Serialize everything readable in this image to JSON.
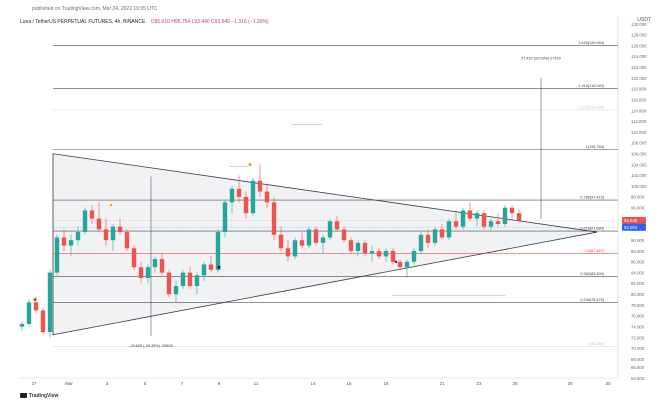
{
  "header": {
    "published": "published on TradingView.com, Mar 24, 2022 19:35 UTC",
    "symbol": "Luna / TetherUS PERPETUAL FUTURES, 4h, BINANCE",
    "ohlc": "O95.010  H95.754  L93.440  C93.640  −1.316 (−1.39%)",
    "currency": "USDT"
  },
  "logo": {
    "text": "TradingView"
  },
  "colors": {
    "up": "#26a69a",
    "down": "#ef5350",
    "fib_line": "#787b86",
    "triangle": "#363a45",
    "ema": "#f23645"
  },
  "chart_data": {
    "type": "candlestick",
    "title": "",
    "y_axis": {
      "min": 64.5,
      "max": 130.0,
      "side": "right",
      "ticks": [
        "130.000",
        "128.000",
        "126.000",
        "124.000",
        "122.000",
        "120.000",
        "118.000",
        "116.000",
        "114.000",
        "112.000",
        "110.000",
        "108.000",
        "106.000",
        "104.000",
        "102.000",
        "100.000",
        "98.000",
        "96.000",
        "94.000",
        "92.000",
        "90.000",
        "88.000",
        "86.000",
        "84.000",
        "82.000",
        "80.000",
        "78.000",
        "76.000",
        "74.000",
        "72.000",
        "70.000",
        "68.000",
        "66.500",
        "64.500"
      ]
    },
    "x_axis": {
      "ticks": [
        "27",
        "Mar",
        "3",
        "5",
        "7",
        "9",
        "11",
        "14",
        "16",
        "18",
        "21",
        "23",
        "25",
        "28",
        "30"
      ]
    },
    "fib_levels": [
      {
        "label": "1.618(126.064)",
        "value": 126.06
      },
      {
        "label": "1.414(118.040)",
        "value": 118.04
      },
      {
        "label": "1.272(114.100)",
        "value": 114.1
      },
      {
        "label": "1(106.784)",
        "value": 106.78
      },
      {
        "label": "0.786(97.415)",
        "value": 97.42
      },
      {
        "label": "0.618(91.680)",
        "value": 91.68
      },
      {
        "label": "0.5(87.567)",
        "value": 87.57
      },
      {
        "label": "0.382(83.304)",
        "value": 83.3
      },
      {
        "label": "0.236(78.475)",
        "value": 78.48
      },
      {
        "label": "0(70.350)",
        "value": 70.35
      }
    ],
    "annotations": [
      {
        "text": "27.420 (29.09%) 27420"
      },
      {
        "text": "-29.605 (-29.35%) -29605"
      }
    ],
    "current_prices": [
      {
        "label": "93.640",
        "value": 93.64,
        "color": "#ef5350"
      },
      {
        "label": "93.053",
        "value": 92.4,
        "color": "#2962ff"
      }
    ],
    "ohlc": [
      [
        74.0,
        75.0,
        73.2,
        74.5
      ],
      [
        74.5,
        79.0,
        74.0,
        78.5
      ],
      [
        78.5,
        79.5,
        76.5,
        77.0
      ],
      [
        77.0,
        77.5,
        72.5,
        73.0
      ],
      [
        73.0,
        84.5,
        72.0,
        84.0
      ],
      [
        84.0,
        91.0,
        83.5,
        90.5
      ],
      [
        90.5,
        92.0,
        88.0,
        89.0
      ],
      [
        89.0,
        91.0,
        87.0,
        90.0
      ],
      [
        90.0,
        92.5,
        89.0,
        91.5
      ],
      [
        91.5,
        96.0,
        91.0,
        95.5
      ],
      [
        95.5,
        96.5,
        93.0,
        94.0
      ],
      [
        94.0,
        97.0,
        91.5,
        92.0
      ],
      [
        92.0,
        94.0,
        89.0,
        90.0
      ],
      [
        90.0,
        93.0,
        88.0,
        92.5
      ],
      [
        92.5,
        94.0,
        91.0,
        91.5
      ],
      [
        91.5,
        92.0,
        88.0,
        88.5
      ],
      [
        88.5,
        89.0,
        84.5,
        85.0
      ],
      [
        85.0,
        86.0,
        82.0,
        83.0
      ],
      [
        83.0,
        85.5,
        82.0,
        85.0
      ],
      [
        85.0,
        87.0,
        84.0,
        86.5
      ],
      [
        86.5,
        87.5,
        83.5,
        84.0
      ],
      [
        84.0,
        84.5,
        79.5,
        80.0
      ],
      [
        80.0,
        82.5,
        78.5,
        81.5
      ],
      [
        81.5,
        84.5,
        81.0,
        84.0
      ],
      [
        84.0,
        85.0,
        81.0,
        81.5
      ],
      [
        81.5,
        84.0,
        80.0,
        83.5
      ],
      [
        83.5,
        86.0,
        82.5,
        85.5
      ],
      [
        85.5,
        87.0,
        84.0,
        84.5
      ],
      [
        84.5,
        92.0,
        84.0,
        91.5
      ],
      [
        91.5,
        97.5,
        90.5,
        97.0
      ],
      [
        97.0,
        100.0,
        95.0,
        99.5
      ],
      [
        99.5,
        102.0,
        97.0,
        98.0
      ],
      [
        98.0,
        99.0,
        94.0,
        95.0
      ],
      [
        95.0,
        101.5,
        94.5,
        101.0
      ],
      [
        101.0,
        104.0,
        98.0,
        99.0
      ],
      [
        99.0,
        100.5,
        96.0,
        97.0
      ],
      [
        97.0,
        98.0,
        90.0,
        91.0
      ],
      [
        91.0,
        92.5,
        88.0,
        88.5
      ],
      [
        88.5,
        90.0,
        86.0,
        87.0
      ],
      [
        87.0,
        90.5,
        86.5,
        90.0
      ],
      [
        90.0,
        91.5,
        88.5,
        89.0
      ],
      [
        89.0,
        92.5,
        88.5,
        92.0
      ],
      [
        92.0,
        92.5,
        89.0,
        89.5
      ],
      [
        89.5,
        91.0,
        87.5,
        90.5
      ],
      [
        90.5,
        94.0,
        90.0,
        93.5
      ],
      [
        93.5,
        94.5,
        91.5,
        92.0
      ],
      [
        92.0,
        92.5,
        89.5,
        90.0
      ],
      [
        90.0,
        90.5,
        87.5,
        88.0
      ],
      [
        88.0,
        90.0,
        87.0,
        89.5
      ],
      [
        89.5,
        90.0,
        87.0,
        87.5
      ],
      [
        87.5,
        89.0,
        86.0,
        88.0
      ],
      [
        88.0,
        88.5,
        86.5,
        87.0
      ],
      [
        87.0,
        88.5,
        86.0,
        88.0
      ],
      [
        88.0,
        88.5,
        85.5,
        86.0
      ],
      [
        86.0,
        86.5,
        84.5,
        85.0
      ],
      [
        85.0,
        86.5,
        83.0,
        86.0
      ],
      [
        86.0,
        88.5,
        85.5,
        88.0
      ],
      [
        88.0,
        91.5,
        87.5,
        91.0
      ],
      [
        91.0,
        92.0,
        88.5,
        89.5
      ],
      [
        89.5,
        92.5,
        89.0,
        92.0
      ],
      [
        92.0,
        93.0,
        90.0,
        90.5
      ],
      [
        90.5,
        94.0,
        90.0,
        93.5
      ],
      [
        93.5,
        95.5,
        92.0,
        92.5
      ],
      [
        92.5,
        96.0,
        92.0,
        95.5
      ],
      [
        95.5,
        97.0,
        93.5,
        94.0
      ],
      [
        94.0,
        95.5,
        92.5,
        95.0
      ],
      [
        95.0,
        95.5,
        92.0,
        92.5
      ],
      [
        92.5,
        94.0,
        92.0,
        93.5
      ],
      [
        93.5,
        95.0,
        92.5,
        93.0
      ],
      [
        93.0,
        96.5,
        92.5,
        96.0
      ],
      [
        96.0,
        96.5,
        94.0,
        95.0
      ],
      [
        95.0,
        95.754,
        93.44,
        93.64
      ]
    ]
  }
}
